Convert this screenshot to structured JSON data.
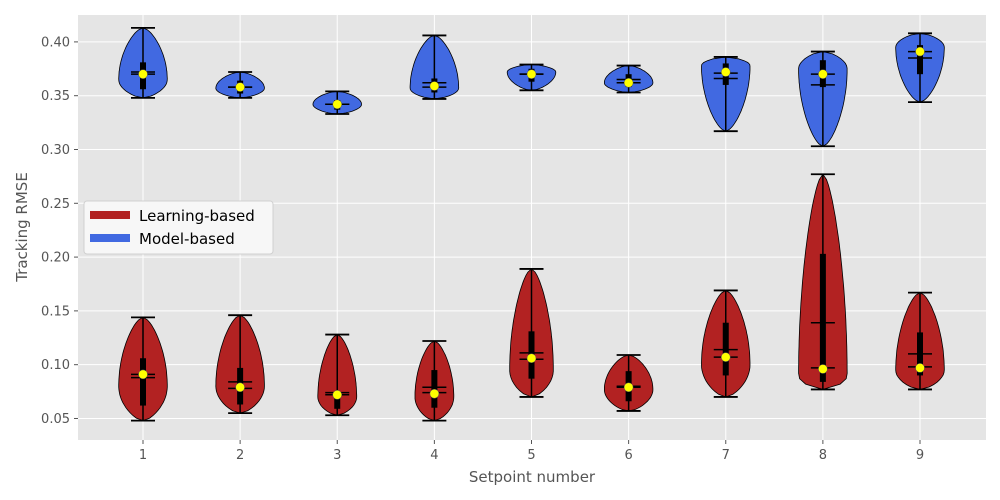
{
  "chart_data": {
    "type": "violin",
    "xlabel": "Setpoint number",
    "ylabel": "Tracking RMSE",
    "categories": [
      "1",
      "2",
      "3",
      "4",
      "5",
      "6",
      "7",
      "8",
      "9"
    ],
    "ylim": [
      0.03,
      0.425
    ],
    "yticks": [
      0.05,
      0.1,
      0.15,
      0.2,
      0.25,
      0.3,
      0.35,
      0.4
    ],
    "ytick_labels": [
      "0.05",
      "0.10",
      "0.15",
      "0.20",
      "0.25",
      "0.30",
      "0.35",
      "0.40"
    ],
    "grid": true,
    "background": "#e5e5e5",
    "legend": {
      "placement": "center-left",
      "entries": [
        {
          "label": "Learning-based",
          "color": "#b22222"
        },
        {
          "label": "Model-based",
          "color": "#4169e1"
        }
      ]
    },
    "series": [
      {
        "name": "Learning-based",
        "color": "#b22222",
        "violins": [
          {
            "min": 0.048,
            "max": 0.144,
            "q1": 0.062,
            "q3": 0.106,
            "median": 0.088,
            "mean": 0.091,
            "marker": 0.091,
            "peak": 0.08,
            "halfwidth": 0.5
          },
          {
            "min": 0.055,
            "max": 0.146,
            "q1": 0.063,
            "q3": 0.097,
            "median": 0.078,
            "mean": 0.084,
            "marker": 0.079,
            "peak": 0.08,
            "halfwidth": 0.5
          },
          {
            "min": 0.053,
            "max": 0.128,
            "q1": 0.059,
            "q3": 0.075,
            "median": 0.072,
            "mean": 0.074,
            "marker": 0.072,
            "peak": 0.07,
            "halfwidth": 0.4
          },
          {
            "min": 0.048,
            "max": 0.122,
            "q1": 0.06,
            "q3": 0.095,
            "median": 0.074,
            "mean": 0.079,
            "marker": 0.073,
            "peak": 0.07,
            "halfwidth": 0.4
          },
          {
            "min": 0.07,
            "max": 0.189,
            "q1": 0.087,
            "q3": 0.131,
            "median": 0.105,
            "mean": 0.111,
            "marker": 0.106,
            "peak": 0.095,
            "halfwidth": 0.45
          },
          {
            "min": 0.057,
            "max": 0.109,
            "q1": 0.066,
            "q3": 0.094,
            "median": 0.079,
            "mean": 0.08,
            "marker": 0.079,
            "peak": 0.077,
            "halfwidth": 0.5
          },
          {
            "min": 0.07,
            "max": 0.169,
            "q1": 0.09,
            "q3": 0.139,
            "median": 0.107,
            "mean": 0.114,
            "marker": 0.107,
            "peak": 0.1,
            "halfwidth": 0.5
          },
          {
            "min": 0.077,
            "max": 0.277,
            "q1": 0.084,
            "q3": 0.203,
            "median": 0.097,
            "mean": 0.139,
            "marker": 0.096,
            "peak": 0.09,
            "halfwidth": 0.5
          },
          {
            "min": 0.077,
            "max": 0.167,
            "q1": 0.09,
            "q3": 0.13,
            "median": 0.098,
            "mean": 0.11,
            "marker": 0.097,
            "peak": 0.095,
            "halfwidth": 0.5
          }
        ]
      },
      {
        "name": "Model-based",
        "color": "#4169e1",
        "violins": [
          {
            "min": 0.348,
            "max": 0.413,
            "q1": 0.356,
            "q3": 0.381,
            "median": 0.37,
            "mean": 0.372,
            "marker": 0.37,
            "peak": 0.365,
            "halfwidth": 0.5
          },
          {
            "min": 0.348,
            "max": 0.372,
            "q1": 0.352,
            "q3": 0.364,
            "median": 0.358,
            "mean": 0.358,
            "marker": 0.358,
            "peak": 0.357,
            "halfwidth": 0.5
          },
          {
            "min": 0.333,
            "max": 0.354,
            "q1": 0.337,
            "q3": 0.346,
            "median": 0.342,
            "mean": 0.342,
            "marker": 0.342,
            "peak": 0.342,
            "halfwidth": 0.5
          },
          {
            "min": 0.347,
            "max": 0.406,
            "q1": 0.353,
            "q3": 0.366,
            "median": 0.358,
            "mean": 0.362,
            "marker": 0.359,
            "peak": 0.357,
            "halfwidth": 0.5
          },
          {
            "min": 0.355,
            "max": 0.379,
            "q1": 0.363,
            "q3": 0.375,
            "median": 0.37,
            "mean": 0.37,
            "marker": 0.37,
            "peak": 0.372,
            "halfwidth": 0.5
          },
          {
            "min": 0.353,
            "max": 0.378,
            "q1": 0.358,
            "q3": 0.37,
            "median": 0.362,
            "mean": 0.365,
            "marker": 0.362,
            "peak": 0.362,
            "halfwidth": 0.5
          },
          {
            "min": 0.317,
            "max": 0.386,
            "q1": 0.36,
            "q3": 0.38,
            "median": 0.366,
            "mean": 0.371,
            "marker": 0.372,
            "peak": 0.378,
            "halfwidth": 0.5
          },
          {
            "min": 0.303,
            "max": 0.391,
            "q1": 0.358,
            "q3": 0.383,
            "median": 0.36,
            "mean": 0.37,
            "marker": 0.37,
            "peak": 0.375,
            "halfwidth": 0.5
          },
          {
            "min": 0.344,
            "max": 0.408,
            "q1": 0.37,
            "q3": 0.397,
            "median": 0.385,
            "mean": 0.391,
            "marker": 0.391,
            "peak": 0.395,
            "halfwidth": 0.5
          }
        ]
      }
    ]
  }
}
